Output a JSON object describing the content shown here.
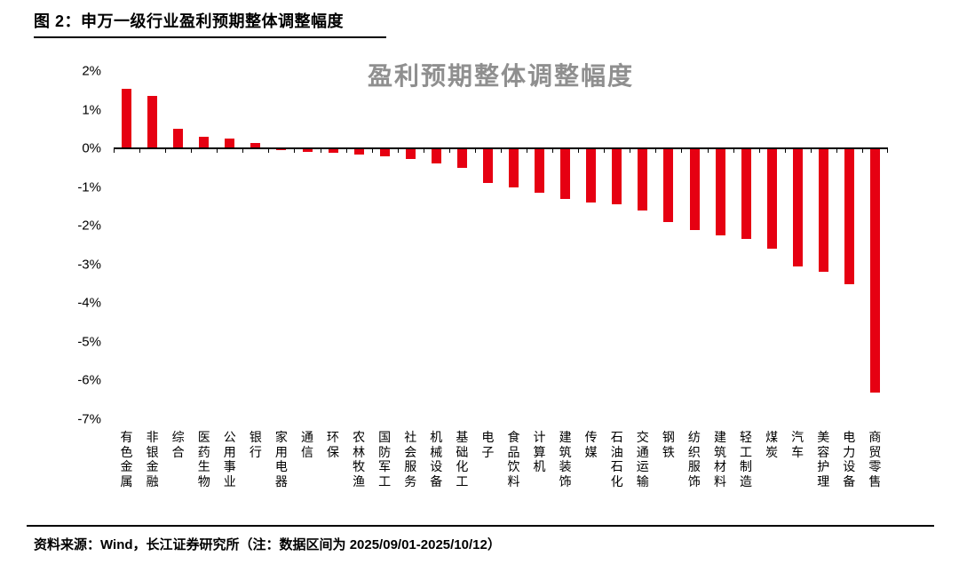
{
  "header": {
    "title": "图 2：申万一级行业盈利预期整体调整幅度"
  },
  "footer": {
    "source": "资料来源：Wind，长江证券研究所（注：数据区间为 2025/09/01-2025/10/12）"
  },
  "chart_data": {
    "type": "bar",
    "title": "盈利预期整体调整幅度",
    "title_color": "#8f8f8f",
    "bar_color": "#e60012",
    "xlabel": "",
    "ylabel": "",
    "ylim": [
      -7,
      2
    ],
    "grid": false,
    "legend": false,
    "yticks": [
      {
        "value": 2,
        "label": "2%"
      },
      {
        "value": 1,
        "label": "1%"
      },
      {
        "value": 0,
        "label": "0%"
      },
      {
        "value": -1,
        "label": "-1%"
      },
      {
        "value": -2,
        "label": "-2%"
      },
      {
        "value": -3,
        "label": "-3%"
      },
      {
        "value": -4,
        "label": "-4%"
      },
      {
        "value": -5,
        "label": "-5%"
      },
      {
        "value": -6,
        "label": "-6%"
      },
      {
        "value": -7,
        "label": "-7%"
      }
    ],
    "categories": [
      "有色金属",
      "非银金融",
      "综合",
      "医药生物",
      "公用事业",
      "银行",
      "家用电器",
      "通信",
      "环保",
      "农林牧渔",
      "国防军工",
      "社会服务",
      "机械设备",
      "基础化工",
      "电子",
      "食品饮料",
      "计算机",
      "建筑装饰",
      "传媒",
      "石油石化",
      "交通运输",
      "钢铁",
      "纺织服饰",
      "建筑材料",
      "轻工制造",
      "煤炭",
      "汽车",
      "美容护理",
      "电力设备",
      "商贸零售"
    ],
    "values": [
      1.55,
      1.35,
      0.5,
      0.3,
      0.25,
      0.15,
      -0.05,
      -0.08,
      -0.12,
      -0.15,
      -0.2,
      -0.28,
      -0.38,
      -0.5,
      -0.9,
      -1.0,
      -1.15,
      -1.3,
      -1.4,
      -1.45,
      -1.6,
      -1.9,
      -2.1,
      -2.25,
      -2.35,
      -2.6,
      -3.05,
      -3.2,
      -3.5,
      -6.3
    ]
  }
}
